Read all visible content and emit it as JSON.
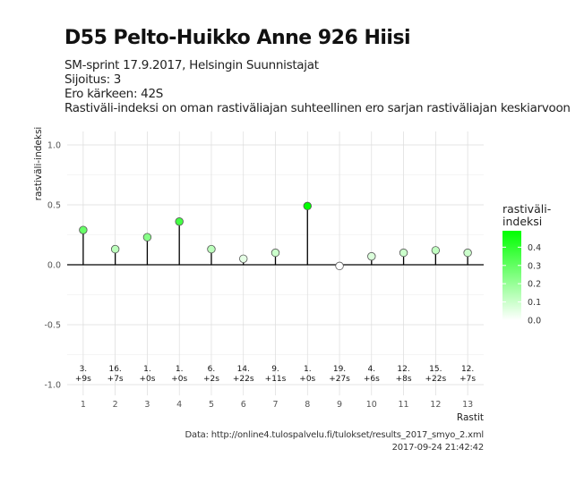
{
  "title": "D55 Pelto-Huikko Anne 926 Hiisi",
  "subtitle_lines": [
    "SM-sprint 17.9.2017, Helsingin Suunnistajat",
    "Sijoitus: 3",
    "Ero kärkeen: 42S",
    "Rastiväli-indeksi on oman rastiväliajan suhteellinen ero sarjan rastiväliajan keskiarvoon"
  ],
  "caption_lines": [
    "Data: http://online4.tulospalvelu.fi/tulokset/results_2017_smyo_2.xml",
    "2017-09-24 21:42:42"
  ],
  "chart_data": {
    "type": "scatter",
    "xlabel": "Rastit",
    "ylabel": "rastiväli-indeksi",
    "x": [
      1,
      2,
      3,
      4,
      5,
      6,
      7,
      8,
      9,
      10,
      11,
      12,
      13
    ],
    "y": [
      0.29,
      0.13,
      0.23,
      0.36,
      0.13,
      0.05,
      0.1,
      0.49,
      -0.01,
      0.07,
      0.1,
      0.12,
      0.1
    ],
    "xticks": [
      "1",
      "2",
      "3",
      "4",
      "5",
      "6",
      "7",
      "8",
      "9",
      "10",
      "11",
      "12",
      "13"
    ],
    "ylim": [
      -1.05,
      1.1
    ],
    "yticks": [
      1.0,
      0.5,
      0.0,
      -0.5,
      -1.0
    ],
    "ytick_labels": [
      "1.0",
      "0.5",
      "0.0",
      "-0.5",
      "-1.0"
    ],
    "point_labels_rank": [
      "3.",
      "16.",
      "1.",
      "1.",
      "6.",
      "14.",
      "9.",
      "1.",
      "19.",
      "4.",
      "12.",
      "15.",
      "12."
    ],
    "point_labels_diff": [
      "+9s",
      "+7s",
      "+0s",
      "+0s",
      "+2s",
      "+22s",
      "+11s",
      "+0s",
      "+27s",
      "+6s",
      "+8s",
      "+22s",
      "+7s"
    ],
    "grid": true,
    "legend": {
      "title_lines": [
        "rastiväli-",
        "indeksi"
      ],
      "ticks": [
        "0.4",
        "0.3",
        "0.2",
        "0.1",
        "0.0"
      ],
      "tick_values": [
        0.4,
        0.3,
        0.2,
        0.1,
        0.0
      ],
      "range": [
        0,
        0.49
      ],
      "color_low": "#ffffff",
      "color_high": "#00ff00",
      "placement": "right"
    }
  }
}
